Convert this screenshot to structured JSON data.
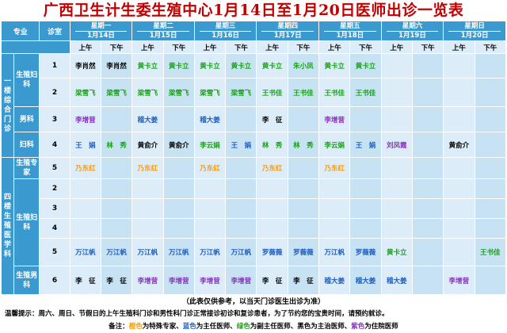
{
  "title": "广西卫生计生委生殖中心1月14日至1月20日医师出诊一览表",
  "colors": {
    "header_bg": "#3a9ad0",
    "cell_bg": "#dcecf8",
    "title": "#c00000",
    "chief": "#ff9900",
    "deputy_chief": "#1aa01a",
    "associate": "#1f5fbf",
    "attending": "#000000",
    "resident": "#8a30c0"
  },
  "header": {
    "specialty": "专业",
    "room": "诊室",
    "am": "上午",
    "pm": "下午",
    "days": [
      {
        "weekday": "星期一",
        "date": "1月14日"
      },
      {
        "weekday": "星期二",
        "date": "1月15日"
      },
      {
        "weekday": "星期三",
        "date": "1月16日"
      },
      {
        "weekday": "星期四",
        "date": "1月17日"
      },
      {
        "weekday": "星期五",
        "date": "1月18日"
      },
      {
        "weekday": "星期六",
        "date": "1月19日"
      },
      {
        "weekday": "星期日",
        "date": "1月20日"
      }
    ]
  },
  "groups": {
    "first_floor": "一楼综合门诊",
    "fourth_floor": "四楼生殖医学科"
  },
  "specialties": {
    "repro_gyn": "生殖妇科",
    "andrology": "男科",
    "gyn": "妇科",
    "repro_expert": "生殖专家",
    "repro_gyn2": "生殖妇科",
    "repro_andro": "生殖男科"
  },
  "rows": [
    {
      "room": "1",
      "cells": [
        {
          "t": "李肖然",
          "c": "black"
        },
        {
          "t": "李肖然",
          "c": "black"
        },
        {
          "t": "黄卡立",
          "c": "green"
        },
        {
          "t": "黄卡立",
          "c": "green"
        },
        {
          "t": "黄卡立",
          "c": "green"
        },
        {
          "t": "黄卡立",
          "c": "green"
        },
        {
          "t": "黄卡立",
          "c": "green"
        },
        {
          "t": "朱小凤",
          "c": "green"
        },
        {
          "t": "黄卡立",
          "c": "green"
        },
        {
          "t": "黄卡立",
          "c": "green"
        },
        {
          "t": "",
          "c": "black"
        },
        {
          "t": "",
          "c": "black"
        },
        {
          "t": "",
          "c": "black"
        },
        {
          "t": "",
          "c": "black"
        }
      ]
    },
    {
      "room": "2",
      "cells": [
        {
          "t": "梁雪飞",
          "c": "green"
        },
        {
          "t": "梁雪飞",
          "c": "green"
        },
        {
          "t": "梁雪飞",
          "c": "green"
        },
        {
          "t": "梁雪飞",
          "c": "green"
        },
        {
          "t": "梁雪飞",
          "c": "green"
        },
        {
          "t": "梁雪飞",
          "c": "green"
        },
        {
          "t": "王书佳",
          "c": "green"
        },
        {
          "t": "王书佳",
          "c": "green"
        },
        {
          "t": "王书佳",
          "c": "green"
        },
        {
          "t": "王书佳",
          "c": "green"
        },
        {
          "t": "",
          "c": "black"
        },
        {
          "t": "",
          "c": "black"
        },
        {
          "t": "",
          "c": "black"
        },
        {
          "t": "",
          "c": "black"
        }
      ]
    },
    {
      "room": "3",
      "cells": [
        {
          "t": "李增营",
          "c": "purple"
        },
        {
          "t": "",
          "c": "black"
        },
        {
          "t": "稽大姜",
          "c": "blue"
        },
        {
          "t": "",
          "c": "black"
        },
        {
          "t": "稽大姜",
          "c": "blue"
        },
        {
          "t": "",
          "c": "black"
        },
        {
          "t": "李　征",
          "c": "black"
        },
        {
          "t": "",
          "c": "black"
        },
        {
          "t": "李增营",
          "c": "purple"
        },
        {
          "t": "",
          "c": "black"
        },
        {
          "t": "",
          "c": "black"
        },
        {
          "t": "",
          "c": "black"
        },
        {
          "t": "",
          "c": "black"
        },
        {
          "t": "",
          "c": "black"
        }
      ]
    },
    {
      "room": "4",
      "cells": [
        {
          "t": "王　娟",
          "c": "blue"
        },
        {
          "t": "林　秀",
          "c": "green"
        },
        {
          "t": "黄俞介",
          "c": "black"
        },
        {
          "t": "黄俞介",
          "c": "black"
        },
        {
          "t": "李云娟",
          "c": "green"
        },
        {
          "t": "王　娟",
          "c": "blue"
        },
        {
          "t": "林　秀",
          "c": "green"
        },
        {
          "t": "林　秀",
          "c": "green"
        },
        {
          "t": "李云娟",
          "c": "green"
        },
        {
          "t": "王　娟",
          "c": "blue"
        },
        {
          "t": "刘凤霞",
          "c": "purple"
        },
        {
          "t": "",
          "c": "black"
        },
        {
          "t": "黄俞介",
          "c": "black"
        },
        {
          "t": "",
          "c": "black"
        }
      ]
    },
    {
      "room": "5",
      "cells": [
        {
          "t": "乃东红",
          "c": "orange"
        },
        {
          "t": "",
          "c": "black"
        },
        {
          "t": "乃东红",
          "c": "orange"
        },
        {
          "t": "",
          "c": "black"
        },
        {
          "t": "乃东红",
          "c": "orange"
        },
        {
          "t": "",
          "c": "black"
        },
        {
          "t": "乃东红",
          "c": "orange"
        },
        {
          "t": "",
          "c": "black"
        },
        {
          "t": "乃东红",
          "c": "orange"
        },
        {
          "t": "",
          "c": "black"
        },
        {
          "t": "",
          "c": "black"
        },
        {
          "t": "",
          "c": "black"
        },
        {
          "t": "",
          "c": "black"
        },
        {
          "t": "",
          "c": "black"
        }
      ]
    },
    {
      "room": "2",
      "cells": [
        {
          "t": "",
          "c": "black"
        },
        {
          "t": "",
          "c": "black"
        },
        {
          "t": "",
          "c": "black"
        },
        {
          "t": "",
          "c": "black"
        },
        {
          "t": "",
          "c": "black"
        },
        {
          "t": "",
          "c": "black"
        },
        {
          "t": "",
          "c": "black"
        },
        {
          "t": "",
          "c": "black"
        },
        {
          "t": "",
          "c": "black"
        },
        {
          "t": "",
          "c": "black"
        },
        {
          "t": "",
          "c": "black"
        },
        {
          "t": "",
          "c": "black"
        },
        {
          "t": "",
          "c": "black"
        },
        {
          "t": "",
          "c": "black"
        }
      ]
    },
    {
      "room": "3",
      "cells": [
        {
          "t": "",
          "c": "black"
        },
        {
          "t": "",
          "c": "black"
        },
        {
          "t": "",
          "c": "black"
        },
        {
          "t": "",
          "c": "black"
        },
        {
          "t": "",
          "c": "black"
        },
        {
          "t": "",
          "c": "black"
        },
        {
          "t": "",
          "c": "black"
        },
        {
          "t": "",
          "c": "black"
        },
        {
          "t": "",
          "c": "black"
        },
        {
          "t": "",
          "c": "black"
        },
        {
          "t": "",
          "c": "black"
        },
        {
          "t": "",
          "c": "black"
        },
        {
          "t": "",
          "c": "black"
        },
        {
          "t": "",
          "c": "black"
        }
      ]
    },
    {
      "room": "4",
      "cells": [
        {
          "t": "",
          "c": "black"
        },
        {
          "t": "",
          "c": "black"
        },
        {
          "t": "",
          "c": "black"
        },
        {
          "t": "",
          "c": "black"
        },
        {
          "t": "",
          "c": "black"
        },
        {
          "t": "",
          "c": "black"
        },
        {
          "t": "",
          "c": "black"
        },
        {
          "t": "",
          "c": "black"
        },
        {
          "t": "",
          "c": "black"
        },
        {
          "t": "",
          "c": "black"
        },
        {
          "t": "",
          "c": "black"
        },
        {
          "t": "",
          "c": "black"
        },
        {
          "t": "",
          "c": "black"
        },
        {
          "t": "",
          "c": "black"
        }
      ]
    },
    {
      "room": "5",
      "cells": [
        {
          "t": "万江帆",
          "c": "blue"
        },
        {
          "t": "万江帆",
          "c": "blue"
        },
        {
          "t": "万江帆",
          "c": "blue"
        },
        {
          "t": "万江帆",
          "c": "blue"
        },
        {
          "t": "万江帆",
          "c": "blue"
        },
        {
          "t": "万江帆",
          "c": "blue"
        },
        {
          "t": "罗薇薇",
          "c": "blue"
        },
        {
          "t": "罗薇薇",
          "c": "blue"
        },
        {
          "t": "万江帆",
          "c": "blue"
        },
        {
          "t": "罗薇薇",
          "c": "blue"
        },
        {
          "t": "黄卡立",
          "c": "green"
        },
        {
          "t": "",
          "c": "black"
        },
        {
          "t": "",
          "c": "black"
        },
        {
          "t": "王书佳",
          "c": "green"
        }
      ]
    },
    {
      "room": "6",
      "cells": [
        {
          "t": "李　征",
          "c": "black"
        },
        {
          "t": "李　征",
          "c": "black"
        },
        {
          "t": "李增营",
          "c": "purple"
        },
        {
          "t": "李增营",
          "c": "purple"
        },
        {
          "t": "李增营",
          "c": "purple"
        },
        {
          "t": "李增营",
          "c": "purple"
        },
        {
          "t": "李　征",
          "c": "black"
        },
        {
          "t": "李　征",
          "c": "black"
        },
        {
          "t": "稽大姜",
          "c": "blue"
        },
        {
          "t": "稽大姜",
          "c": "blue"
        },
        {
          "t": "稽大姜",
          "c": "blue"
        },
        {
          "t": "",
          "c": "black"
        },
        {
          "t": "李增营",
          "c": "purple"
        },
        {
          "t": "",
          "c": "black"
        }
      ]
    }
  ],
  "notes": {
    "disclaimer": "（此表仅供参考，以当天门诊医生出诊为准）",
    "tip": "温馨提示：周六、周日、节假日的上午生殖科门诊和男性科门诊正常接诊初诊和复诊患者，为了节约您的宝贵时间，请预约就诊。",
    "legend_prefix": "备注：",
    "legend_orange": "橙色",
    "legend_orange_desc": "为特殊专家、",
    "legend_blue": "蓝色",
    "legend_blue_desc": "为主任医师、",
    "legend_green": "绿色",
    "legend_green_desc": "为副主任医师、黑色为主治医师、",
    "legend_purple": "紫色",
    "legend_purple_desc": "为住院医师"
  }
}
